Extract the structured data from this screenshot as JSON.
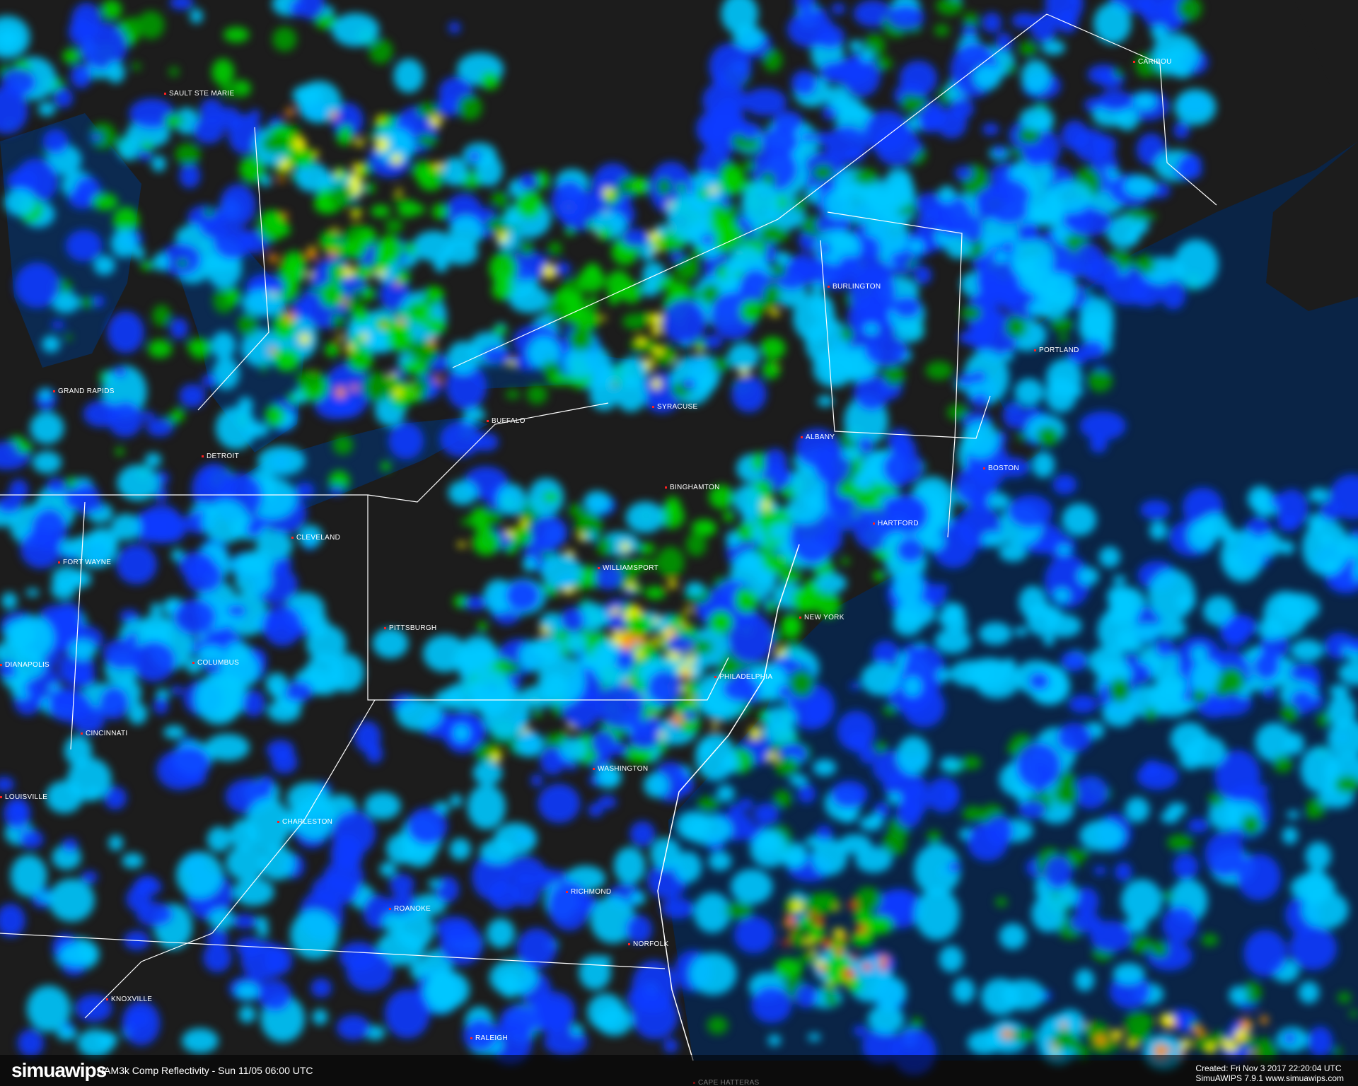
{
  "map": {
    "colors": {
      "land": "#1c1c1c",
      "ocean": "#0a2446",
      "lake": "#0c2a50",
      "border": "#ffffff",
      "city_dot": "#ff2020"
    },
    "reflectivity_colors": [
      "#0a3cff",
      "#00c8ff",
      "#009a00",
      "#00d000",
      "#ffff00",
      "#ff9000",
      "#ff2000"
    ],
    "cities": [
      "SAULT STE MARIE",
      "CARIBOU",
      "BURLINGTON",
      "PORTLAND",
      "GRAND RAPIDS",
      "BUFFALO",
      "SYRACUSE",
      "ALBANY",
      "DETROIT",
      "BOSTON",
      "BINGHAMTON",
      "HARTFORD",
      "CLEVELAND",
      "FORT WAYNE",
      "WILLIAMSPORT",
      "NEW YORK",
      "PITTSBURGH",
      "DIANAPOLIS",
      "COLUMBUS",
      "PHILADELPHIA",
      "CINCINNATI",
      "WASHINGTON",
      "LOUISVILLE",
      "CHARLESTON",
      "RICHMOND",
      "ROANOKE",
      "NORFOLK",
      "KNOXVILLE",
      "RALEIGH",
      "CAPE HATTERAS"
    ]
  },
  "footer": {
    "logo": "simuawips",
    "product": "NAM3k Comp Reflectivity - Sun 11/05 06:00 UTC",
    "created": "Created: Fri Nov 3 2017 22:20:04 UTC",
    "version": "SimuAWIPS 7.9.1 www.simuawips.com"
  }
}
